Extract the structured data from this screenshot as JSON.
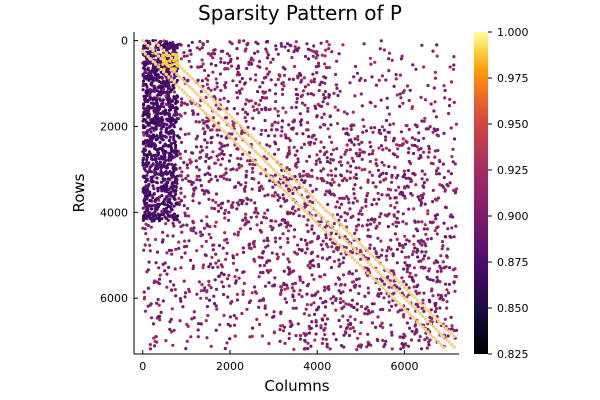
{
  "chart_data": {
    "type": "heatmap",
    "subtype": "sparsity-scatter",
    "title": "Sparsity Pattern of P",
    "xlabel": "Columns",
    "ylabel": "Rows",
    "xlim": [
      -200,
      7250
    ],
    "ylim": [
      7300,
      -200
    ],
    "y_axis_inverted": true,
    "x_ticks": [
      0,
      2000,
      4000,
      6000
    ],
    "x_tick_labels": [
      "0",
      "2000",
      "4000",
      "6000"
    ],
    "y_ticks": [
      0,
      2000,
      4000,
      6000
    ],
    "y_tick_labels": [
      "0",
      "2000",
      "4000",
      "6000"
    ],
    "colorbar": {
      "colormap": "inferno",
      "range": [
        0.825,
        1.0
      ],
      "ticks": [
        0.825,
        0.85,
        0.875,
        0.9,
        0.925,
        0.95,
        0.975,
        1.0
      ],
      "tick_labels": [
        "0.825",
        "0.850",
        "0.875",
        "0.900",
        "0.925",
        "0.950",
        "0.975",
        "1.000"
      ]
    },
    "matrix_size": [
      7200,
      7200
    ],
    "structure": {
      "diagonal_bands_value": 0.97,
      "dense_block_columns": [
        0,
        800
      ],
      "dense_block_value": 0.86,
      "typical_value": 0.9
    },
    "grid": false,
    "legend": "none"
  }
}
